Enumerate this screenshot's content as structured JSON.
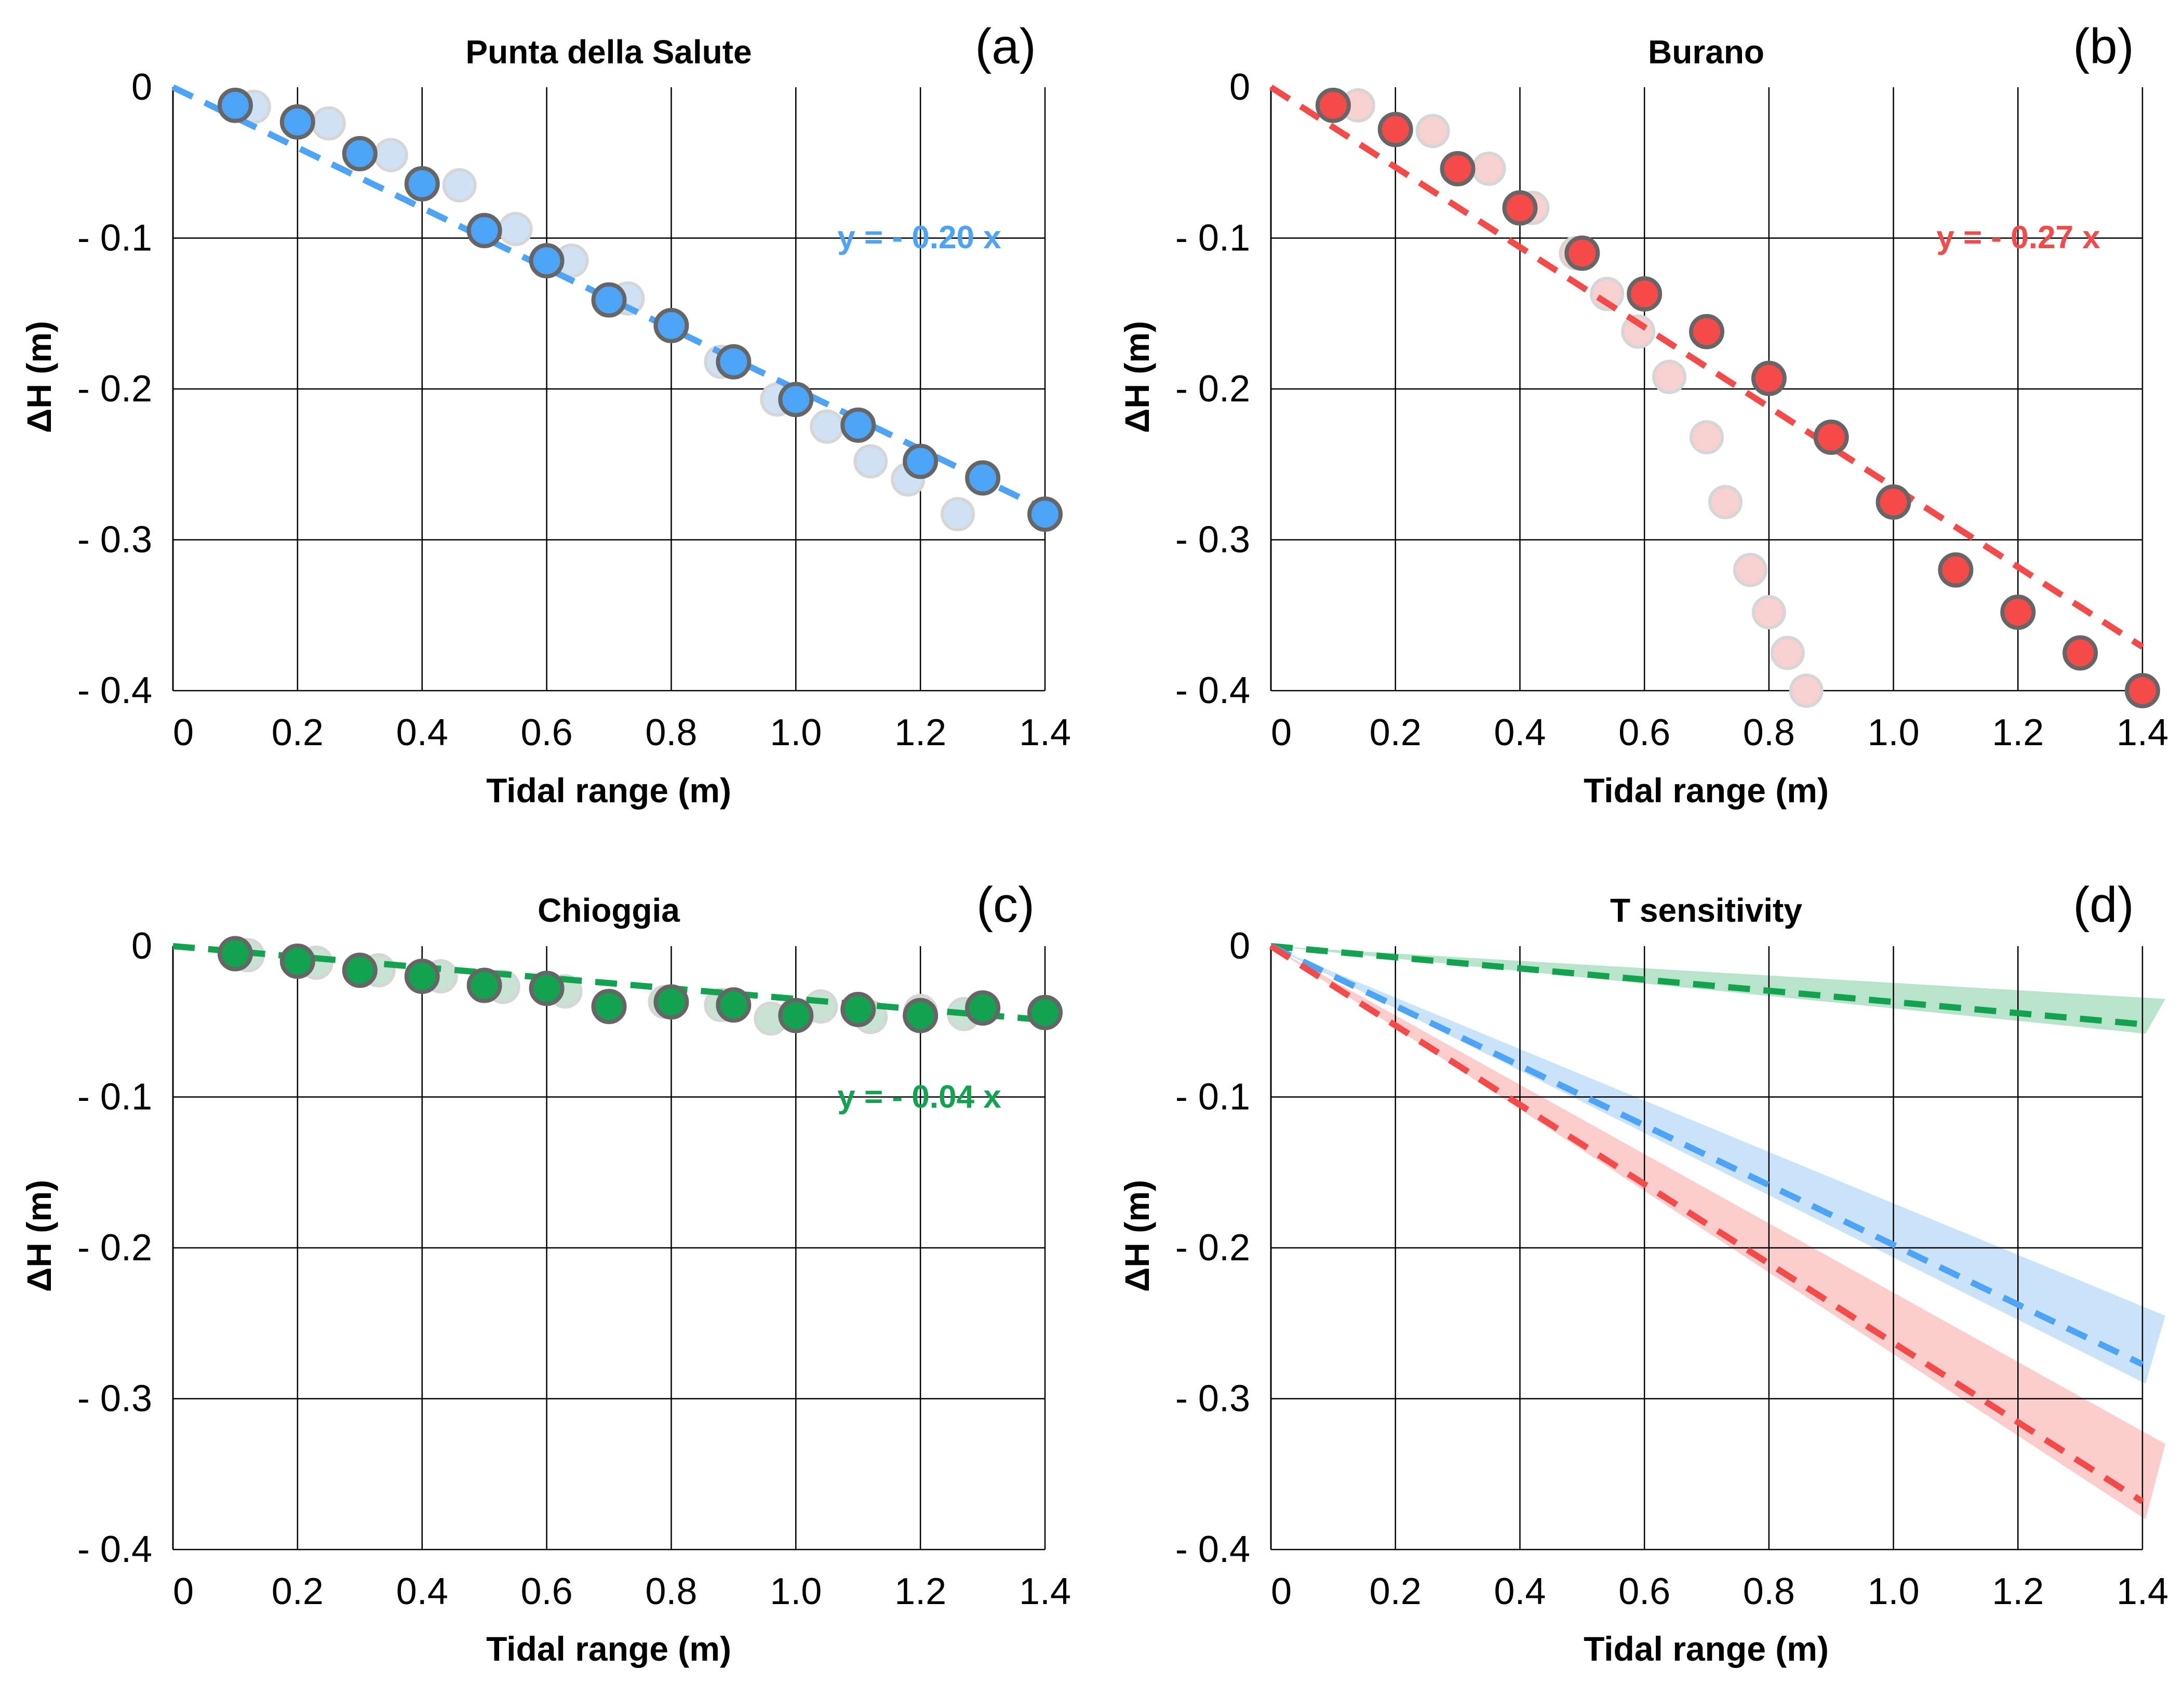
{
  "chart_data": [
    {
      "type": "scatter",
      "panel_label": "(a)",
      "title": "Punta della Salute",
      "xlabel": "Tidal range (m)",
      "ylabel": "ΔH (m)",
      "xlim": [
        0,
        1.4
      ],
      "ylim": [
        -0.4,
        0
      ],
      "x_ticks": [
        "0",
        "0.2",
        "0.4",
        "0.6",
        "0.8",
        "1.0",
        "1.2",
        "1.4"
      ],
      "y_ticks": [
        "0",
        "- 0.1",
        "- 0.2",
        "- 0.3",
        "- 0.4"
      ],
      "grid": true,
      "color": "#4da3f5",
      "light_color": "#cfe2f5",
      "equation": "y = - 0.20 x",
      "fit": {
        "slope": -0.2,
        "x_end": 1.4
      },
      "series": [
        {
          "name": "background",
          "x": [
            0.13,
            0.25,
            0.35,
            0.46,
            0.55,
            0.64,
            0.73,
            0.8,
            0.88,
            0.97,
            1.05,
            1.12,
            1.18,
            1.26
          ],
          "y": [
            -0.013,
            -0.024,
            -0.045,
            -0.065,
            -0.094,
            -0.115,
            -0.14,
            -0.158,
            -0.182,
            -0.207,
            -0.225,
            -0.248,
            -0.26,
            -0.283
          ]
        },
        {
          "name": "main",
          "x": [
            0.1,
            0.2,
            0.3,
            0.4,
            0.5,
            0.6,
            0.7,
            0.8,
            0.9,
            1.0,
            1.1,
            1.2,
            1.3,
            1.4
          ],
          "y": [
            -0.012,
            -0.023,
            -0.044,
            -0.064,
            -0.095,
            -0.115,
            -0.141,
            -0.158,
            -0.182,
            -0.207,
            -0.224,
            -0.248,
            -0.259,
            -0.283
          ]
        }
      ]
    },
    {
      "type": "scatter",
      "panel_label": "(b)",
      "title": "Burano",
      "xlabel": "Tidal range (m)",
      "ylabel": "ΔH (m)",
      "xlim": [
        0,
        1.4
      ],
      "ylim": [
        -0.4,
        0
      ],
      "x_ticks": [
        "0",
        "0.2",
        "0.4",
        "0.6",
        "0.8",
        "1.0",
        "1.2",
        "1.4"
      ],
      "y_ticks": [
        "0",
        "- 0.1",
        "- 0.2",
        "- 0.3",
        "- 0.4"
      ],
      "grid": true,
      "color": "#f44a4a",
      "light_color": "#f9d0d0",
      "equation": "y = - 0.27 x",
      "fit": {
        "slope": -0.265,
        "x_end": 1.4
      },
      "series": [
        {
          "name": "background",
          "x": [
            0.14,
            0.26,
            0.35,
            0.42,
            0.49,
            0.54,
            0.59,
            0.64,
            0.7,
            0.73,
            0.77,
            0.8,
            0.83,
            0.86
          ],
          "y": [
            -0.012,
            -0.029,
            -0.054,
            -0.08,
            -0.11,
            -0.137,
            -0.162,
            -0.192,
            -0.232,
            -0.275,
            -0.32,
            -0.348,
            -0.375,
            -0.4
          ]
        },
        {
          "name": "main",
          "x": [
            0.1,
            0.2,
            0.3,
            0.4,
            0.5,
            0.6,
            0.7,
            0.8,
            0.9,
            1.0,
            1.1,
            1.2,
            1.3,
            1.4
          ],
          "y": [
            -0.012,
            -0.028,
            -0.054,
            -0.08,
            -0.11,
            -0.137,
            -0.162,
            -0.193,
            -0.232,
            -0.275,
            -0.32,
            -0.348,
            -0.375,
            -0.4
          ]
        }
      ]
    },
    {
      "type": "scatter",
      "panel_label": "(c)",
      "title": "Chioggia",
      "xlabel": "Tidal range (m)",
      "ylabel": "ΔH (m)",
      "xlim": [
        0,
        1.4
      ],
      "ylim": [
        -0.4,
        0
      ],
      "x_ticks": [
        "0",
        "0.2",
        "0.4",
        "0.6",
        "0.8",
        "1.0",
        "1.2",
        "1.4"
      ],
      "y_ticks": [
        "0",
        "- 0.1",
        "- 0.2",
        "- 0.3",
        "- 0.4"
      ],
      "grid": true,
      "color": "#13a24f",
      "light_color": "#c7e3d1",
      "equation": "y = - 0.04 x",
      "fit": {
        "slope": -0.035,
        "x_end": 1.4
      },
      "series": [
        {
          "name": "background",
          "x": [
            0.12,
            0.23,
            0.33,
            0.43,
            0.53,
            0.63,
            0.7,
            0.79,
            0.88,
            0.96,
            1.04,
            1.12,
            1.2,
            1.27
          ],
          "y": [
            -0.006,
            -0.011,
            -0.016,
            -0.02,
            -0.027,
            -0.03,
            -0.04,
            -0.037,
            -0.039,
            -0.048,
            -0.04,
            -0.047,
            -0.043,
            -0.045
          ]
        },
        {
          "name": "main",
          "x": [
            0.1,
            0.2,
            0.3,
            0.4,
            0.5,
            0.6,
            0.7,
            0.8,
            0.9,
            1.0,
            1.1,
            1.2,
            1.3,
            1.4
          ],
          "y": [
            -0.005,
            -0.01,
            -0.016,
            -0.02,
            -0.026,
            -0.028,
            -0.04,
            -0.037,
            -0.039,
            -0.046,
            -0.042,
            -0.046,
            -0.041,
            -0.044
          ]
        }
      ]
    },
    {
      "type": "line",
      "panel_label": "(d)",
      "title": "T sensitivity",
      "xlabel": "Tidal range (m)",
      "ylabel": "ΔH (m)",
      "xlim": [
        0,
        1.4
      ],
      "ylim": [
        -0.4,
        0
      ],
      "x_ticks": [
        "0",
        "0.2",
        "0.4",
        "0.6",
        "0.8",
        "1.0",
        "1.2",
        "1.4"
      ],
      "y_ticks": [
        "0",
        "- 0.1",
        "- 0.2",
        "- 0.3",
        "- 0.4"
      ],
      "grid": true,
      "series": [
        {
          "name": "Chioggia",
          "color": "#13a24f",
          "band_color": "#9fdbb8",
          "slope": -0.037,
          "band": {
            "x_end": 1.43,
            "y_upper": -0.035,
            "y_lower": -0.058
          }
        },
        {
          "name": "Punta della Salute",
          "color": "#4da3f5",
          "band_color": "#b9d9f7",
          "slope": -0.198,
          "band": {
            "x_end": 1.43,
            "y_upper": -0.245,
            "y_lower": -0.29
          }
        },
        {
          "name": "Burano",
          "color": "#f44a4a",
          "band_color": "#f9bcbc",
          "slope": -0.263,
          "band": {
            "x_end": 1.43,
            "y_upper": -0.33,
            "y_lower": -0.38
          }
        }
      ]
    }
  ]
}
